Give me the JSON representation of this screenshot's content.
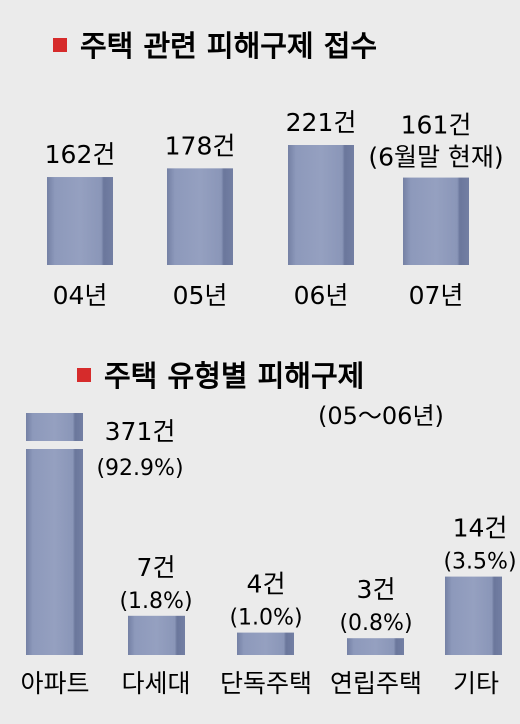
{
  "chart_data": [
    {
      "type": "bar",
      "title": "주택 관련 피해구제 접수",
      "title_marker_color": "#d62b2b",
      "bar_color": "#8a96b8",
      "categories": [
        "04년",
        "05년",
        "06년",
        "07년"
      ],
      "values": [
        162,
        178,
        221,
        161
      ],
      "value_labels": [
        "162건",
        "178건",
        "221건",
        "161건"
      ],
      "notes": [
        "",
        "",
        "",
        "(6월말 현재)"
      ]
    },
    {
      "type": "bar",
      "title": "주택 유형별 피해구제",
      "subtitle": "(05～06년)",
      "title_marker_color": "#d62b2b",
      "bar_color": "#8a96b8",
      "axis_break": true,
      "categories": [
        "아파트",
        "다세대",
        "단독주택",
        "연립주택",
        "기타"
      ],
      "values": [
        371,
        7,
        4,
        3,
        14
      ],
      "value_labels": [
        "371건",
        "7건",
        "4건",
        "3건",
        "14건"
      ],
      "percent_labels": [
        "(92.9%)",
        "(1.8%)",
        "(1.0%)",
        "(0.8%)",
        "(3.5%)"
      ]
    }
  ]
}
